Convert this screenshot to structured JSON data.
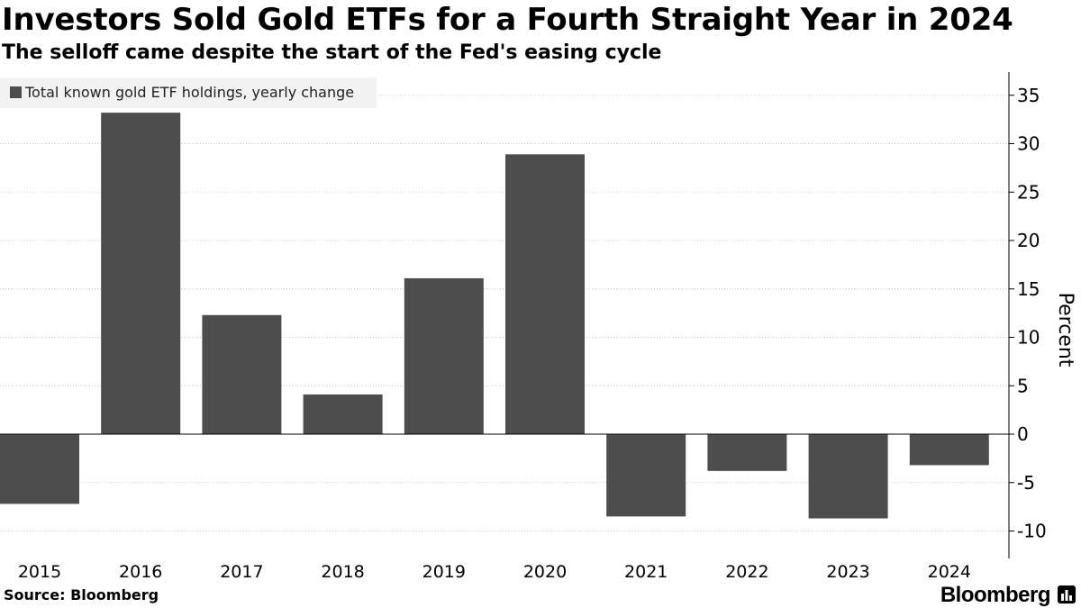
{
  "chart_data": {
    "type": "bar",
    "title": "Investors Sold Gold ETFs for a Fourth Straight Year in 2024",
    "subtitle": "The selloff came despite the start of the Fed's easing cycle",
    "categories": [
      "2015",
      "2016",
      "2017",
      "2018",
      "2019",
      "2020",
      "2021",
      "2022",
      "2023",
      "2024"
    ],
    "series": [
      {
        "name": "Total known gold ETF holdings, yearly change",
        "color": "#4d4d4d",
        "values": [
          -7.2,
          33.2,
          12.3,
          4.1,
          16.1,
          28.9,
          -8.5,
          -3.8,
          -8.7,
          -3.2
        ]
      }
    ],
    "xlabel": "",
    "ylabel": "Percent",
    "ylim": [
      -12.5,
      37.5
    ],
    "yticks": [
      35,
      30,
      25,
      20,
      15,
      10,
      5,
      0,
      -5,
      -10
    ],
    "ytick_labels": [
      "35",
      "30",
      "25",
      "20",
      "15",
      "10",
      "5",
      "0",
      "-5",
      "-10"
    ],
    "grid": true,
    "legend_position": "top-left",
    "y_axis_side": "right"
  },
  "footer": {
    "source": "Source: Bloomberg",
    "brand": "Bloomberg"
  }
}
